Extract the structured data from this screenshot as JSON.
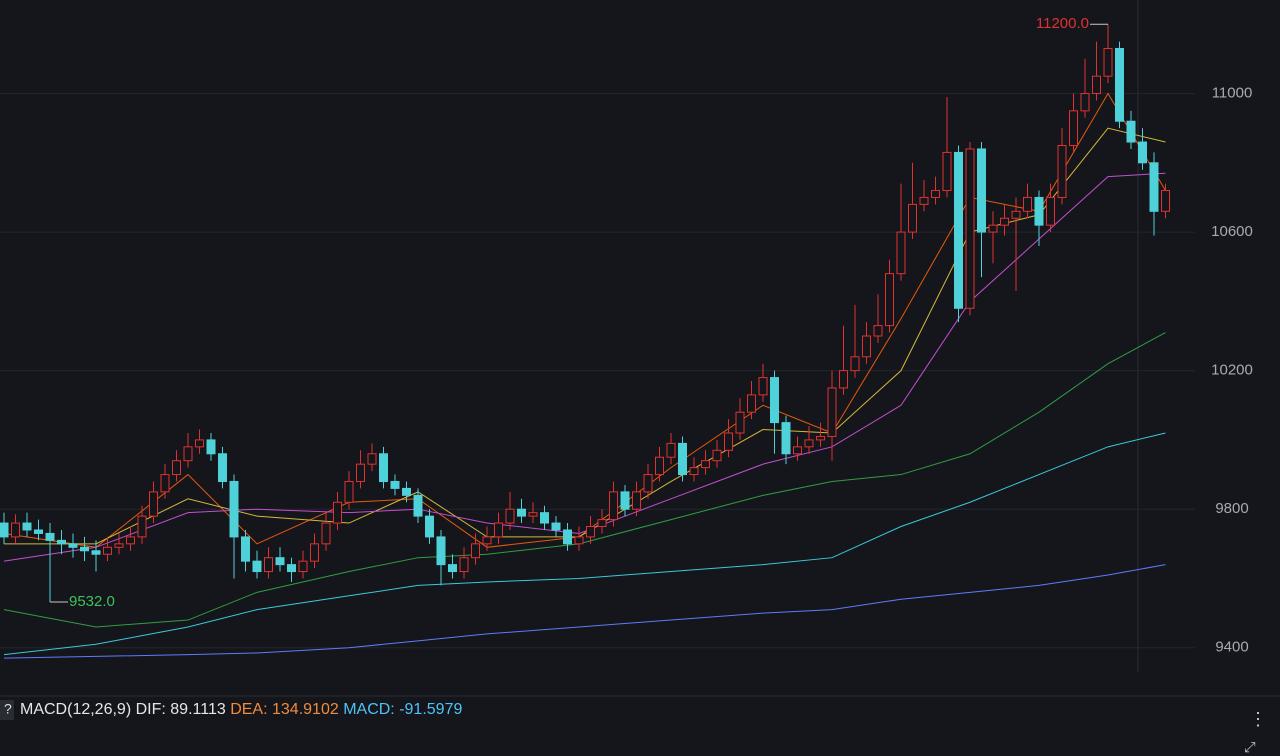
{
  "chart_data": {
    "type": "candlestick",
    "open": [
      9760,
      9720,
      9760,
      9740,
      9730,
      9710,
      9700,
      9690,
      9680,
      9670,
      9690,
      9700,
      9720,
      9780,
      9850,
      9900,
      9940,
      9980,
      10000,
      9960,
      9880,
      9720,
      9650,
      9620,
      9660,
      9640,
      9620,
      9650,
      9700,
      9760,
      9820,
      9880,
      9930,
      9960,
      9880,
      9860,
      9840,
      9780,
      9720,
      9640,
      9620,
      9660,
      9700,
      9720,
      9760,
      9800,
      9780,
      9790,
      9760,
      9740,
      9700,
      9720,
      9750,
      9770,
      9850,
      9800,
      9850,
      9900,
      9950,
      9990,
      9900,
      9920,
      9940,
      9970,
      10020,
      10080,
      10130,
      10180,
      10050,
      9960,
      9980,
      10000,
      10010,
      10150,
      10200,
      10240,
      10300,
      10330,
      10480,
      10600,
      10680,
      10700,
      10720,
      10830,
      10380,
      10840,
      10600,
      10620,
      10640,
      10660,
      10700,
      10620,
      10700,
      10850,
      10950,
      11000,
      11050,
      11130,
      10920,
      10860,
      10800,
      10660
    ],
    "high": [
      9790,
      9785,
      9790,
      9770,
      9760,
      9740,
      9730,
      9720,
      9710,
      9720,
      9730,
      9750,
      9810,
      9880,
      9930,
      9970,
      10020,
      10030,
      10020,
      9980,
      9900,
      9740,
      9680,
      9690,
      9690,
      9660,
      9680,
      9730,
      9790,
      9850,
      9910,
      9970,
      9990,
      9980,
      9900,
      9880,
      9860,
      9800,
      9740,
      9670,
      9690,
      9730,
      9750,
      9790,
      9850,
      9830,
      9820,
      9810,
      9780,
      9760,
      9750,
      9780,
      9800,
      9880,
      9870,
      9880,
      9930,
      9980,
      10020,
      10010,
      9950,
      9970,
      10000,
      10060,
      10120,
      10170,
      10220,
      10200,
      10070,
      10010,
      10040,
      10050,
      10200,
      10330,
      10390,
      10340,
      10420,
      10520,
      10740,
      10800,
      10750,
      10760,
      10990,
      10850,
      10860,
      10860,
      10660,
      10680,
      10700,
      10740,
      10720,
      10740,
      10900,
      11000,
      11100,
      11150,
      11200,
      11150,
      10950,
      10900,
      10830,
      10740
    ],
    "low": [
      9700,
      9700,
      9720,
      9710,
      9532,
      9670,
      9660,
      9650,
      9620,
      9650,
      9670,
      9680,
      9700,
      9760,
      9830,
      9880,
      9920,
      9960,
      9940,
      9860,
      9600,
      9620,
      9600,
      9600,
      9620,
      9590,
      9600,
      9630,
      9680,
      9740,
      9800,
      9860,
      9910,
      9860,
      9840,
      9820,
      9760,
      9700,
      9580,
      9600,
      9600,
      9640,
      9680,
      9700,
      9740,
      9760,
      9760,
      9740,
      9720,
      9680,
      9680,
      9700,
      9730,
      9750,
      9780,
      9780,
      9830,
      9880,
      9930,
      9880,
      9880,
      9900,
      9920,
      9950,
      10000,
      10060,
      10110,
      9960,
      9930,
      9940,
      9960,
      9980,
      9940,
      10130,
      10180,
      10220,
      10280,
      10310,
      10460,
      10580,
      10660,
      10680,
      10700,
      10340,
      10360,
      10470,
      10510,
      10590,
      10430,
      10640,
      10560,
      10600,
      10680,
      10830,
      10930,
      10980,
      11030,
      10900,
      10840,
      10780,
      10590,
      10640
    ],
    "close": [
      9720,
      9760,
      9740,
      9730,
      9710,
      9700,
      9690,
      9680,
      9670,
      9690,
      9700,
      9720,
      9780,
      9850,
      9900,
      9940,
      9980,
      10000,
      9960,
      9880,
      9720,
      9650,
      9620,
      9660,
      9640,
      9620,
      9650,
      9700,
      9760,
      9820,
      9880,
      9930,
      9960,
      9880,
      9860,
      9840,
      9780,
      9720,
      9640,
      9620,
      9660,
      9700,
      9720,
      9760,
      9800,
      9780,
      9790,
      9760,
      9740,
      9700,
      9720,
      9750,
      9770,
      9850,
      9800,
      9850,
      9900,
      9950,
      9990,
      9900,
      9920,
      9940,
      9970,
      10020,
      10080,
      10130,
      10180,
      10050,
      9960,
      9980,
      10000,
      10010,
      10150,
      10200,
      10240,
      10300,
      10330,
      10480,
      10600,
      10680,
      10700,
      10720,
      10830,
      10380,
      10840,
      10600,
      10620,
      10640,
      10660,
      10700,
      10620,
      10700,
      10850,
      10950,
      11000,
      11050,
      11130,
      10920,
      10860,
      10800,
      10660,
      10720
    ],
    "up_color": "#e03131",
    "down_color": "#4fd1d9",
    "lines": [
      {
        "color": "#e8590c",
        "x": [
          0,
          8,
          16,
          22,
          30,
          36,
          42,
          50,
          58,
          66,
          72,
          78,
          84,
          90,
          96,
          101
        ],
        "values": [
          9730,
          9690,
          9900,
          9700,
          9820,
          9830,
          9690,
          9720,
          9920,
          10100,
          10020,
          10350,
          10700,
          10660,
          11000,
          10720
        ]
      },
      {
        "color": "#d4b83a",
        "x": [
          0,
          8,
          16,
          22,
          30,
          36,
          42,
          50,
          58,
          66,
          72,
          78,
          84,
          90,
          96,
          101
        ],
        "values": [
          9700,
          9700,
          9830,
          9780,
          9760,
          9850,
          9720,
          9720,
          9880,
          10030,
          10020,
          10200,
          10600,
          10650,
          10900,
          10860
        ]
      },
      {
        "color": "#c44fd0",
        "x": [
          0,
          8,
          16,
          22,
          30,
          36,
          42,
          50,
          58,
          66,
          72,
          78,
          84,
          90,
          96,
          101
        ],
        "values": [
          9650,
          9690,
          9790,
          9800,
          9790,
          9800,
          9760,
          9730,
          9830,
          9930,
          9980,
          10100,
          10400,
          10580,
          10760,
          10770
        ]
      },
      {
        "color": "#2f9e44",
        "x": [
          0,
          8,
          16,
          22,
          30,
          36,
          42,
          50,
          58,
          66,
          72,
          78,
          84,
          90,
          96,
          101
        ],
        "values": [
          9510,
          9460,
          9480,
          9560,
          9620,
          9660,
          9670,
          9700,
          9770,
          9840,
          9880,
          9900,
          9960,
          10080,
          10220,
          10310
        ]
      },
      {
        "color": "#3bc9db",
        "x": [
          0,
          8,
          16,
          22,
          30,
          36,
          42,
          50,
          58,
          66,
          72,
          78,
          84,
          90,
          96,
          101
        ],
        "values": [
          9380,
          9410,
          9460,
          9510,
          9550,
          9580,
          9590,
          9600,
          9620,
          9640,
          9660,
          9750,
          9820,
          9900,
          9980,
          10020
        ]
      },
      {
        "color": "#5c7cfa",
        "x": [
          0,
          8,
          16,
          22,
          30,
          36,
          42,
          50,
          58,
          66,
          72,
          78,
          84,
          90,
          96,
          101
        ],
        "values": [
          9370,
          9375,
          9380,
          9385,
          9400,
          9420,
          9440,
          9460,
          9480,
          9500,
          9510,
          9540,
          9560,
          9580,
          9610,
          9640
        ]
      }
    ],
    "max_label": "11200.0",
    "min_label": "9532.0",
    "ylim": [
      9330,
      11270
    ],
    "yticks": [
      9400,
      9800,
      10200,
      10600,
      11000
    ],
    "grid": true,
    "macd": {
      "title": "MACD(12,26,9)",
      "dif_label": "DIF:",
      "dif": 89.1113,
      "dea_label": "DEA:",
      "dea": 134.9102,
      "macd_label": "MACD:",
      "macd": -91.5979
    }
  }
}
